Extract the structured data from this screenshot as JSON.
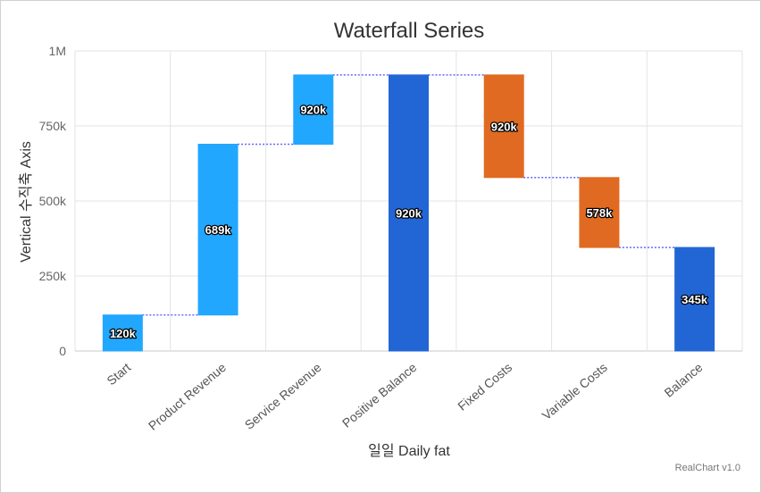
{
  "chart_data": {
    "type": "bar",
    "subtype": "waterfall",
    "title": "Waterfall Series",
    "xlabel": "일일 Daily fat",
    "ylabel": "Vertical 수직축 Axis",
    "ylim": [
      0,
      1000000
    ],
    "yticks": [
      {
        "value": 0,
        "label": "0"
      },
      {
        "value": 250000,
        "label": "250k"
      },
      {
        "value": 500000,
        "label": "500k"
      },
      {
        "value": 750000,
        "label": "750k"
      },
      {
        "value": 1000000,
        "label": "1M"
      }
    ],
    "grid": true,
    "colors": {
      "up": "#22a7ff",
      "down": "#e06a22",
      "sum": "#2266d6",
      "connector": "#6666ff"
    },
    "bars": [
      {
        "category": "Start",
        "start": 0,
        "end": 120000,
        "kind": "up",
        "label": "120k"
      },
      {
        "category": "Product Revenue",
        "start": 120000,
        "end": 689000,
        "kind": "up",
        "label": "689k"
      },
      {
        "category": "Service Revenue",
        "start": 689000,
        "end": 920000,
        "kind": "up",
        "label": "920k"
      },
      {
        "category": "Positive Balance",
        "start": 0,
        "end": 920000,
        "kind": "sum",
        "label": "920k"
      },
      {
        "category": "Fixed Costs",
        "start": 920000,
        "end": 578000,
        "kind": "down",
        "label": "920k"
      },
      {
        "category": "Variable Costs",
        "start": 578000,
        "end": 345000,
        "kind": "down",
        "label": "578k"
      },
      {
        "category": "Balance",
        "start": 0,
        "end": 345000,
        "kind": "sum",
        "label": "345k"
      }
    ]
  },
  "credit": "RealChart v1.0"
}
